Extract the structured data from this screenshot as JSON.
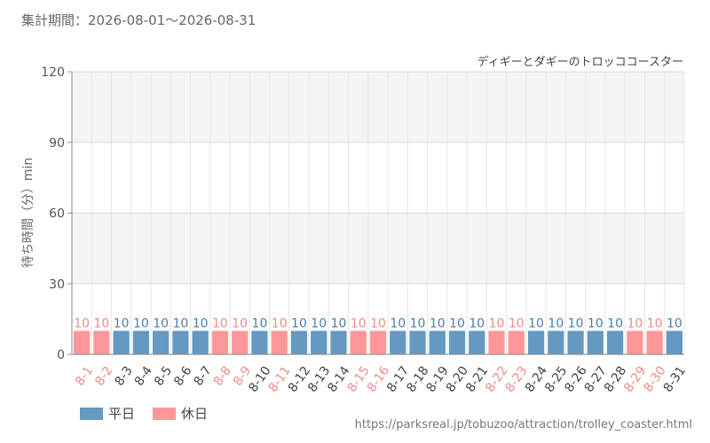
{
  "period": {
    "label": "集計期間：2026-08-01～2026-08-31"
  },
  "source": {
    "url": "https://parksreal.jp/tobuzoo/attraction/trolley_coaster.html"
  },
  "colors": {
    "weekday": "#6699c2",
    "holiday": "#ff9799",
    "weekday_text": "#4a7cae",
    "holiday_text": "#f08a8c"
  },
  "legend": [
    {
      "key": "weekday",
      "label": "平日"
    },
    {
      "key": "holiday",
      "label": "休日"
    }
  ],
  "chart_data": {
    "type": "bar",
    "title": "ディギーとダギーのトロッココースター",
    "ylabel": "待ち時間（分）min",
    "xlabel": "",
    "ylim": [
      0,
      120
    ],
    "yticks": [
      0,
      30,
      60,
      90,
      120
    ],
    "grid": true,
    "legend_position": "bottom-left",
    "categories": [
      "8-1",
      "8-2",
      "8-3",
      "8-4",
      "8-5",
      "8-6",
      "8-7",
      "8-8",
      "8-9",
      "8-10",
      "8-11",
      "8-12",
      "8-13",
      "8-14",
      "8-15",
      "8-16",
      "8-17",
      "8-18",
      "8-19",
      "8-20",
      "8-21",
      "8-22",
      "8-23",
      "8-24",
      "8-25",
      "8-26",
      "8-27",
      "8-28",
      "8-29",
      "8-30",
      "8-31"
    ],
    "values": [
      10,
      10,
      10,
      10,
      10,
      10,
      10,
      10,
      10,
      10,
      10,
      10,
      10,
      10,
      10,
      10,
      10,
      10,
      10,
      10,
      10,
      10,
      10,
      10,
      10,
      10,
      10,
      10,
      10,
      10,
      10
    ],
    "day_type": [
      "holiday",
      "holiday",
      "weekday",
      "weekday",
      "weekday",
      "weekday",
      "weekday",
      "holiday",
      "holiday",
      "weekday",
      "holiday",
      "weekday",
      "weekday",
      "weekday",
      "holiday",
      "holiday",
      "weekday",
      "weekday",
      "weekday",
      "weekday",
      "weekday",
      "holiday",
      "holiday",
      "weekday",
      "weekday",
      "weekday",
      "weekday",
      "weekday",
      "holiday",
      "holiday",
      "weekday"
    ]
  }
}
